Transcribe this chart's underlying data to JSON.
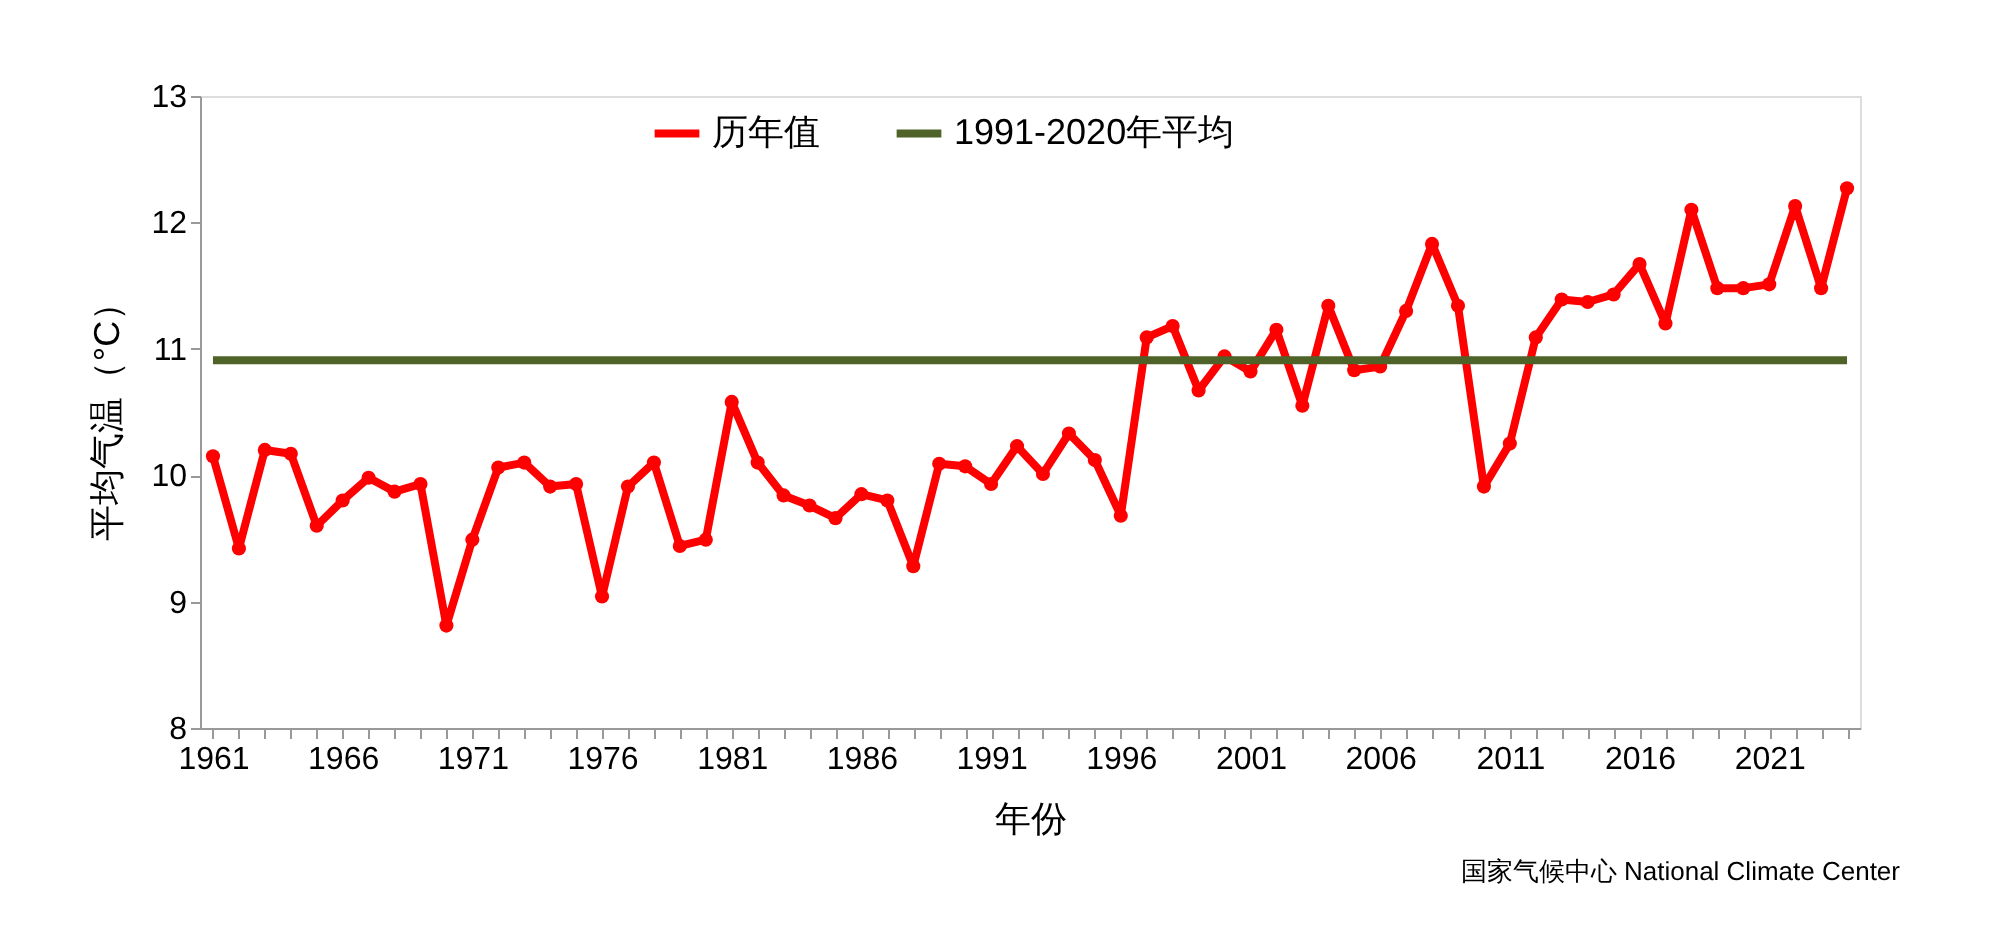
{
  "chart_data": {
    "type": "line",
    "xlabel": "年份",
    "ylabel": "平均气温（°C）",
    "x": [
      1961,
      1962,
      1963,
      1964,
      1965,
      1966,
      1967,
      1968,
      1969,
      1970,
      1971,
      1972,
      1973,
      1974,
      1975,
      1976,
      1977,
      1978,
      1979,
      1980,
      1981,
      1982,
      1983,
      1984,
      1985,
      1986,
      1987,
      1988,
      1989,
      1990,
      1991,
      1992,
      1993,
      1994,
      1995,
      1996,
      1997,
      1998,
      1999,
      2000,
      2001,
      2002,
      2003,
      2004,
      2005,
      2006,
      2007,
      2008,
      2009,
      2010,
      2011,
      2012,
      2013,
      2014,
      2015,
      2016,
      2017,
      2018,
      2019,
      2020,
      2021,
      2022,
      2023,
      2024
    ],
    "series": [
      {
        "name": "历年值",
        "color": "#ff0000",
        "marker": "circle",
        "values": [
          10.15,
          9.42,
          10.2,
          10.17,
          9.6,
          9.8,
          9.98,
          9.87,
          9.93,
          8.81,
          9.49,
          10.06,
          10.1,
          9.91,
          9.93,
          9.04,
          9.91,
          10.1,
          9.44,
          9.49,
          10.58,
          10.1,
          9.84,
          9.76,
          9.66,
          9.85,
          9.8,
          9.28,
          10.09,
          10.07,
          9.93,
          10.23,
          10.01,
          10.33,
          10.12,
          9.68,
          11.09,
          11.18,
          10.67,
          10.94,
          10.82,
          11.15,
          10.55,
          11.34,
          10.83,
          10.86,
          11.3,
          11.83,
          11.34,
          9.91,
          10.25,
          11.09,
          11.39,
          11.37,
          11.43,
          11.67,
          11.2,
          12.1,
          11.48,
          11.48,
          11.51,
          12.13,
          11.48,
          12.27
        ]
      },
      {
        "name": "1991-2020年平均",
        "color": "#4f6228",
        "marker": "none",
        "x": [
          1961,
          2024
        ],
        "values": [
          10.91,
          10.91
        ]
      }
    ],
    "xlim": [
      1960.5,
      2024.5
    ],
    "xticks": [
      1961,
      {
        "value": 1962,
        "label": null
      },
      {
        "value": 1963,
        "label": null
      },
      {
        "value": 1964,
        "label": null
      },
      {
        "value": 1965,
        "label": null
      },
      1966,
      {
        "value": 1967,
        "label": null
      },
      {
        "value": 1968,
        "label": null
      },
      {
        "value": 1969,
        "label": null
      },
      {
        "value": 1970,
        "label": null
      },
      1971,
      {
        "value": 1972,
        "label": null
      },
      {
        "value": 1973,
        "label": null
      },
      {
        "value": 1974,
        "label": null
      },
      {
        "value": 1975,
        "label": null
      },
      1976,
      {
        "value": 1977,
        "label": null
      },
      {
        "value": 1978,
        "label": null
      },
      {
        "value": 1979,
        "label": null
      },
      {
        "value": 1980,
        "label": null
      },
      1981,
      {
        "value": 1982,
        "label": null
      },
      {
        "value": 1983,
        "label": null
      },
      {
        "value": 1984,
        "label": null
      },
      {
        "value": 1985,
        "label": null
      },
      1986,
      {
        "value": 1987,
        "label": null
      },
      {
        "value": 1988,
        "label": null
      },
      {
        "value": 1989,
        "label": null
      },
      {
        "value": 1990,
        "label": null
      },
      1991,
      {
        "value": 1992,
        "label": null
      },
      {
        "value": 1993,
        "label": null
      },
      {
        "value": 1994,
        "label": null
      },
      {
        "value": 1995,
        "label": null
      },
      1996,
      {
        "value": 1997,
        "label": null
      },
      {
        "value": 1998,
        "label": null
      },
      {
        "value": 1999,
        "label": null
      },
      {
        "value": 2000,
        "label": null
      },
      2001,
      {
        "value": 2002,
        "label": null
      },
      {
        "value": 2003,
        "label": null
      },
      {
        "value": 2004,
        "label": null
      },
      {
        "value": 2005,
        "label": null
      },
      2006,
      {
        "value": 2007,
        "label": null
      },
      {
        "value": 2008,
        "label": null
      },
      {
        "value": 2009,
        "label": null
      },
      {
        "value": 2010,
        "label": null
      },
      2011,
      {
        "value": 2012,
        "label": null
      },
      {
        "value": 2013,
        "label": null
      },
      {
        "value": 2014,
        "label": null
      },
      {
        "value": 2015,
        "label": null
      },
      2016,
      {
        "value": 2017,
        "label": null
      },
      {
        "value": 2018,
        "label": null
      },
      {
        "value": 2019,
        "label": null
      },
      {
        "value": 2020,
        "label": null
      },
      2021,
      {
        "value": 2022,
        "label": null
      },
      {
        "value": 2023,
        "label": null
      },
      {
        "value": 2024,
        "label": null
      }
    ],
    "ylim": [
      8,
      13
    ],
    "yticks": [
      8,
      9,
      10,
      11,
      12,
      13
    ],
    "grid": false,
    "legend": "top",
    "line_style": "solid",
    "annotations": [
      "国家气候中心 National Climate Center"
    ]
  }
}
